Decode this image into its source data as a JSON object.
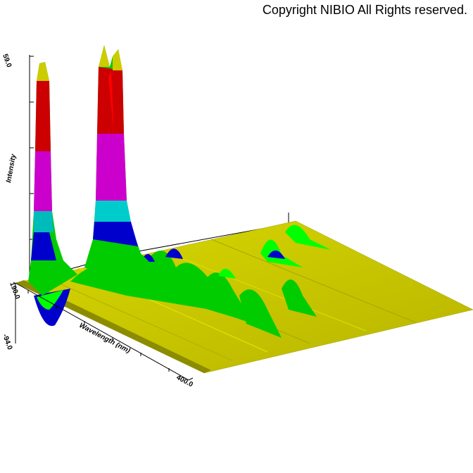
{
  "copyright": "Copyright NIBIO All Rights reserved.",
  "chart_data": {
    "type": "surface3d",
    "ylabel": "Intensity",
    "xlabel": "Wavelength (nm)",
    "x_tick_labels": [
      "190.0",
      "400.0"
    ],
    "y_tick_labels": [
      "59.0",
      "-94.0"
    ],
    "x_range": [
      190,
      400
    ],
    "z_range": [
      -94,
      59
    ],
    "color_bands": [
      "#0000cc",
      "#00ccff",
      "#00cc00",
      "#00ff00",
      "#cccc00",
      "#cc00cc",
      "#cc0000",
      "#ff0000"
    ],
    "note": "3D spectral intensity surface, banded color scale"
  }
}
